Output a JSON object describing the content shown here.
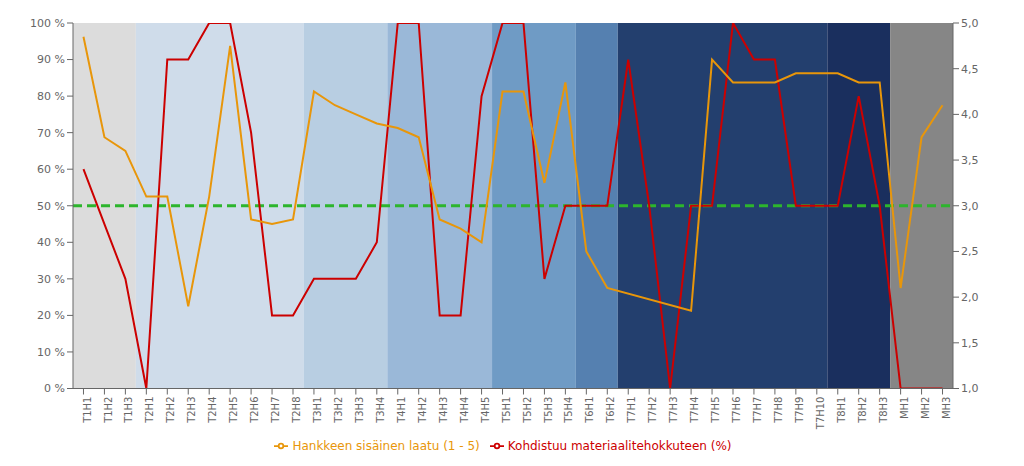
{
  "chart_data": {
    "type": "line",
    "categories": [
      "T1H1",
      "T1H2",
      "T1H3",
      "T2H1",
      "T2H2",
      "T2H3",
      "T2H4",
      "T2H5",
      "T2H6",
      "T2H7",
      "T2H8",
      "T3H1",
      "T3H2",
      "T3H3",
      "T3H4",
      "T4H1",
      "T4H2",
      "T4H3",
      "T4H4",
      "T4H5",
      "T5H1",
      "T5H2",
      "T5H3",
      "T5H4",
      "T6H1",
      "T6H2",
      "T7H1",
      "T7H2",
      "T7H3",
      "T7H4",
      "T7H5",
      "T7H6",
      "T7H7",
      "T7H8",
      "T7H9",
      "T7H10",
      "T8H1",
      "T8H2",
      "T8H3",
      "MH1",
      "MH2",
      "MH3"
    ],
    "series": [
      {
        "name": "Kohdistuu materiaalitehokkuteen (%)",
        "color": "#cc0000",
        "values": [
          60,
          45,
          30,
          0,
          90,
          90,
          100,
          100,
          70,
          20,
          20,
          30,
          30,
          30,
          40,
          100,
          100,
          20,
          20,
          80,
          100,
          100,
          30,
          50,
          50,
          50,
          90,
          50,
          0,
          50,
          50,
          100,
          90,
          90,
          50,
          50,
          50,
          80,
          50,
          0,
          0,
          0
        ]
      },
      {
        "name": "Hankkeen sisäinen laatu (1 - 5)",
        "color": "#e8960a",
        "axis": "y2",
        "values": [
          4.85,
          3.75,
          3.6,
          3.1,
          3.1,
          1.9,
          3.1,
          4.75,
          2.85,
          2.8,
          2.85,
          4.25,
          4.1,
          4.0,
          3.9,
          3.85,
          3.75,
          2.85,
          2.75,
          2.6,
          4.25,
          4.25,
          3.25,
          4.35,
          2.5,
          2.1,
          null,
          null,
          null,
          1.85,
          4.6,
          4.35,
          4.35,
          4.35,
          4.45,
          4.45,
          4.45,
          4.35,
          4.35,
          2.1,
          3.75,
          4.1
        ]
      }
    ],
    "ylim": [
      0,
      100
    ],
    "yticks": [
      {
        "value": 0,
        "label": "0 %"
      },
      {
        "value": 10,
        "label": "10 %"
      },
      {
        "value": 20,
        "label": "20 %"
      },
      {
        "value": 30,
        "label": "30 %"
      },
      {
        "value": 40,
        "label": "40 %"
      },
      {
        "value": 50,
        "label": "50 %"
      },
      {
        "value": 60,
        "label": "60 %"
      },
      {
        "value": 70,
        "label": "70 %"
      },
      {
        "value": 80,
        "label": "80 %"
      },
      {
        "value": 90,
        "label": "90 %"
      },
      {
        "value": 100,
        "label": "100 %"
      }
    ],
    "y2lim": [
      1.0,
      5.0
    ],
    "y2ticks": [
      {
        "value": 1.0,
        "label": "1,0"
      },
      {
        "value": 1.5,
        "label": "1,5"
      },
      {
        "value": 2.0,
        "label": "2,0"
      },
      {
        "value": 2.5,
        "label": "2,5"
      },
      {
        "value": 3.0,
        "label": "3,0"
      },
      {
        "value": 3.5,
        "label": "3,5"
      },
      {
        "value": 4.0,
        "label": "4,0"
      },
      {
        "value": 4.5,
        "label": "4,5"
      },
      {
        "value": 5.0,
        "label": "5,0"
      }
    ],
    "reference_lines": [
      {
        "value": 50,
        "color": "#2db52d",
        "line_style": "dashed"
      }
    ],
    "background_regions": [
      {
        "from": "T1H1",
        "to": "T1H3",
        "color": "#dcdcdc"
      },
      {
        "from": "T2H1",
        "to": "T2H8",
        "color": "#cfdcea"
      },
      {
        "from": "T3H1",
        "to": "T3H4",
        "color": "#b8cee2"
      },
      {
        "from": "T4H1",
        "to": "T4H5",
        "color": "#9ab8d8"
      },
      {
        "from": "T5H1",
        "to": "T5H4",
        "color": "#6f9bc5"
      },
      {
        "from": "T6H1",
        "to": "T6H2",
        "color": "#5580b0"
      },
      {
        "from": "T7H1",
        "to": "T7H10",
        "color": "#233f6e"
      },
      {
        "from": "T8H1",
        "to": "T8H3",
        "color": "#1a2f5e"
      },
      {
        "from": "MH1",
        "to": "MH3",
        "color": "#868686"
      }
    ],
    "grid": false,
    "legend": "bottom"
  }
}
